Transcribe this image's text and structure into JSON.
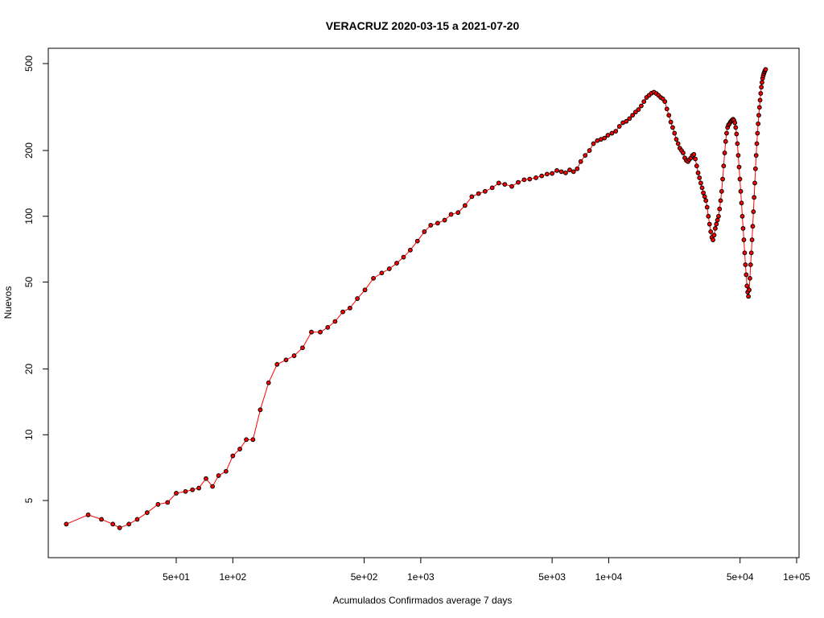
{
  "chart_data": {
    "type": "line",
    "title": "VERACRUZ 2020-03-15 a 2021-07-20",
    "xlabel": "Acumulados Confirmados average  7  days",
    "ylabel": "Nuevos",
    "x_scale": "log",
    "y_scale": "log",
    "xlim": [
      10,
      100000
    ],
    "ylim": [
      3,
      580
    ],
    "x_ticks": [
      {
        "value": 50,
        "label": "5e+01"
      },
      {
        "value": 100,
        "label": "1e+02"
      },
      {
        "value": 500,
        "label": "5e+02"
      },
      {
        "value": 1000,
        "label": "1e+03"
      },
      {
        "value": 5000,
        "label": "5e+03"
      },
      {
        "value": 10000,
        "label": "1e+04"
      },
      {
        "value": 50000,
        "label": "5e+04"
      },
      {
        "value": 100000,
        "label": "1e+05"
      }
    ],
    "y_ticks": [
      {
        "value": 5,
        "label": "5"
      },
      {
        "value": 10,
        "label": "10"
      },
      {
        "value": 20,
        "label": "20"
      },
      {
        "value": 50,
        "label": "50"
      },
      {
        "value": 100,
        "label": "100"
      },
      {
        "value": 200,
        "label": "200"
      },
      {
        "value": 500,
        "label": "500"
      }
    ],
    "grid": false,
    "line_color": "#ff0000",
    "marker_fill": "#ff0000",
    "marker_stroke": "#000000",
    "series": [
      {
        "points": [
          [
            13,
            3.9
          ],
          [
            17,
            4.3
          ],
          [
            20,
            4.1
          ],
          [
            23,
            3.9
          ],
          [
            25,
            3.75
          ],
          [
            28,
            3.9
          ],
          [
            31,
            4.1
          ],
          [
            35,
            4.4
          ],
          [
            40,
            4.8
          ],
          [
            45,
            4.9
          ],
          [
            50,
            5.4
          ],
          [
            56,
            5.5
          ],
          [
            61,
            5.6
          ],
          [
            66,
            5.7
          ],
          [
            72,
            6.3
          ],
          [
            78,
            5.8
          ],
          [
            84,
            6.5
          ],
          [
            92,
            6.8
          ],
          [
            100,
            8.0
          ],
          [
            109,
            8.6
          ],
          [
            118,
            9.5
          ],
          [
            128,
            9.5
          ],
          [
            140,
            13.0
          ],
          [
            155,
            17.3
          ],
          [
            172,
            21.0
          ],
          [
            192,
            22.0
          ],
          [
            212,
            23.0
          ],
          [
            235,
            25.0
          ],
          [
            262,
            29.5
          ],
          [
            292,
            29.5
          ],
          [
            320,
            31.0
          ],
          [
            350,
            33.0
          ],
          [
            385,
            36.5
          ],
          [
            420,
            38.0
          ],
          [
            460,
            42.0
          ],
          [
            505,
            46.0
          ],
          [
            560,
            52.0
          ],
          [
            620,
            55.0
          ],
          [
            680,
            57.5
          ],
          [
            745,
            61.0
          ],
          [
            810,
            65.0
          ],
          [
            880,
            70.0
          ],
          [
            960,
            77.0
          ],
          [
            1045,
            85.0
          ],
          [
            1130,
            91.0
          ],
          [
            1230,
            93.0
          ],
          [
            1340,
            96.0
          ],
          [
            1450,
            102.0
          ],
          [
            1580,
            104.0
          ],
          [
            1720,
            112.0
          ],
          [
            1870,
            123.0
          ],
          [
            2030,
            127.0
          ],
          [
            2200,
            130.0
          ],
          [
            2400,
            135.0
          ],
          [
            2600,
            142.0
          ],
          [
            2800,
            140.0
          ],
          [
            3050,
            137.0
          ],
          [
            3300,
            143.0
          ],
          [
            3550,
            147.0
          ],
          [
            3800,
            148.0
          ],
          [
            4100,
            150.0
          ],
          [
            4400,
            153.0
          ],
          [
            4700,
            156.0
          ],
          [
            5000,
            157.0
          ],
          [
            5300,
            162.0
          ],
          [
            5600,
            160.0
          ],
          [
            5900,
            158.0
          ],
          [
            6200,
            163.0
          ],
          [
            6500,
            160.0
          ],
          [
            6800,
            165.0
          ],
          [
            7100,
            178.0
          ],
          [
            7500,
            190.0
          ],
          [
            7900,
            200.0
          ],
          [
            8300,
            215.0
          ],
          [
            8700,
            222.0
          ],
          [
            9100,
            225.0
          ],
          [
            9500,
            228.0
          ],
          [
            9900,
            235.0
          ],
          [
            10400,
            240.0
          ],
          [
            10900,
            245.0
          ],
          [
            11400,
            258.0
          ],
          [
            11900,
            268.0
          ],
          [
            12400,
            272.0
          ],
          [
            12900,
            280.0
          ],
          [
            13400,
            290.0
          ],
          [
            13900,
            300.0
          ],
          [
            14400,
            308.0
          ],
          [
            14900,
            320.0
          ],
          [
            15400,
            335.0
          ],
          [
            15900,
            350.0
          ],
          [
            16400,
            358.0
          ],
          [
            16900,
            366.0
          ],
          [
            17400,
            370.0
          ],
          [
            17900,
            365.0
          ],
          [
            18400,
            358.0
          ],
          [
            18900,
            350.0
          ],
          [
            19400,
            345.0
          ],
          [
            19900,
            335.0
          ],
          [
            20400,
            310.0
          ],
          [
            20900,
            290.0
          ],
          [
            21400,
            270.0
          ],
          [
            21900,
            255.0
          ],
          [
            22400,
            240.0
          ],
          [
            22900,
            225.0
          ],
          [
            23400,
            215.0
          ],
          [
            23900,
            205.0
          ],
          [
            24400,
            200.0
          ],
          [
            24900,
            195.0
          ],
          [
            25400,
            185.0
          ],
          [
            25900,
            180.0
          ],
          [
            26400,
            178.0
          ],
          [
            26900,
            182.0
          ],
          [
            27400,
            185.0
          ],
          [
            27900,
            190.0
          ],
          [
            28400,
            192.0
          ],
          [
            28900,
            183.0
          ],
          [
            29400,
            170.0
          ],
          [
            29900,
            158.0
          ],
          [
            30400,
            150.0
          ],
          [
            30900,
            142.0
          ],
          [
            31400,
            135.0
          ],
          [
            31900,
            128.0
          ],
          [
            32400,
            123.0
          ],
          [
            32900,
            118.0
          ],
          [
            33400,
            110.0
          ],
          [
            33900,
            100.0
          ],
          [
            34400,
            92.0
          ],
          [
            34900,
            85.0
          ],
          [
            35400,
            80.0
          ],
          [
            35900,
            78.0
          ],
          [
            36400,
            82.0
          ],
          [
            36900,
            88.0
          ],
          [
            37400,
            92.0
          ],
          [
            37900,
            96.0
          ],
          [
            38400,
            100.0
          ],
          [
            38900,
            108.0
          ],
          [
            39400,
            118.0
          ],
          [
            39900,
            130.0
          ],
          [
            40400,
            148.0
          ],
          [
            40900,
            170.0
          ],
          [
            41400,
            195.0
          ],
          [
            41900,
            220.0
          ],
          [
            42400,
            240.0
          ],
          [
            42900,
            255.0
          ],
          [
            43400,
            262.0
          ],
          [
            43900,
            265.0
          ],
          [
            44400,
            270.0
          ],
          [
            44900,
            273.0
          ],
          [
            45400,
            276.0
          ],
          [
            45900,
            278.0
          ],
          [
            46400,
            275.0
          ],
          [
            46900,
            268.0
          ],
          [
            47400,
            255.0
          ],
          [
            47900,
            238.0
          ],
          [
            48400,
            215.0
          ],
          [
            48900,
            190.0
          ],
          [
            49400,
            168.0
          ],
          [
            49900,
            148.0
          ],
          [
            50400,
            130.0
          ],
          [
            50900,
            115.0
          ],
          [
            51400,
            100.0
          ],
          [
            51900,
            88.0
          ],
          [
            52400,
            78.0
          ],
          [
            52900,
            68.0
          ],
          [
            53400,
            60.0
          ],
          [
            53900,
            54.0
          ],
          [
            54400,
            48.0
          ],
          [
            54900,
            45.0
          ],
          [
            55400,
            43.0
          ],
          [
            55900,
            46.0
          ],
          [
            56400,
            52.0
          ],
          [
            56900,
            60.0
          ],
          [
            57400,
            68.0
          ],
          [
            57900,
            78.0
          ],
          [
            58400,
            90.0
          ],
          [
            58900,
            105.0
          ],
          [
            59400,
            122.0
          ],
          [
            59900,
            142.0
          ],
          [
            60400,
            165.0
          ],
          [
            60900,
            190.0
          ],
          [
            61400,
            215.0
          ],
          [
            61900,
            240.0
          ],
          [
            62400,
            265.0
          ],
          [
            62900,
            290.0
          ],
          [
            63400,
            315.0
          ],
          [
            63900,
            340.0
          ],
          [
            64400,
            365.0
          ],
          [
            64900,
            390.0
          ],
          [
            65400,
            410.0
          ],
          [
            65900,
            428.0
          ],
          [
            66400,
            440.0
          ],
          [
            66900,
            450.0
          ],
          [
            67400,
            458.0
          ],
          [
            67900,
            465.0
          ],
          [
            68400,
            470.0
          ]
        ]
      }
    ]
  }
}
